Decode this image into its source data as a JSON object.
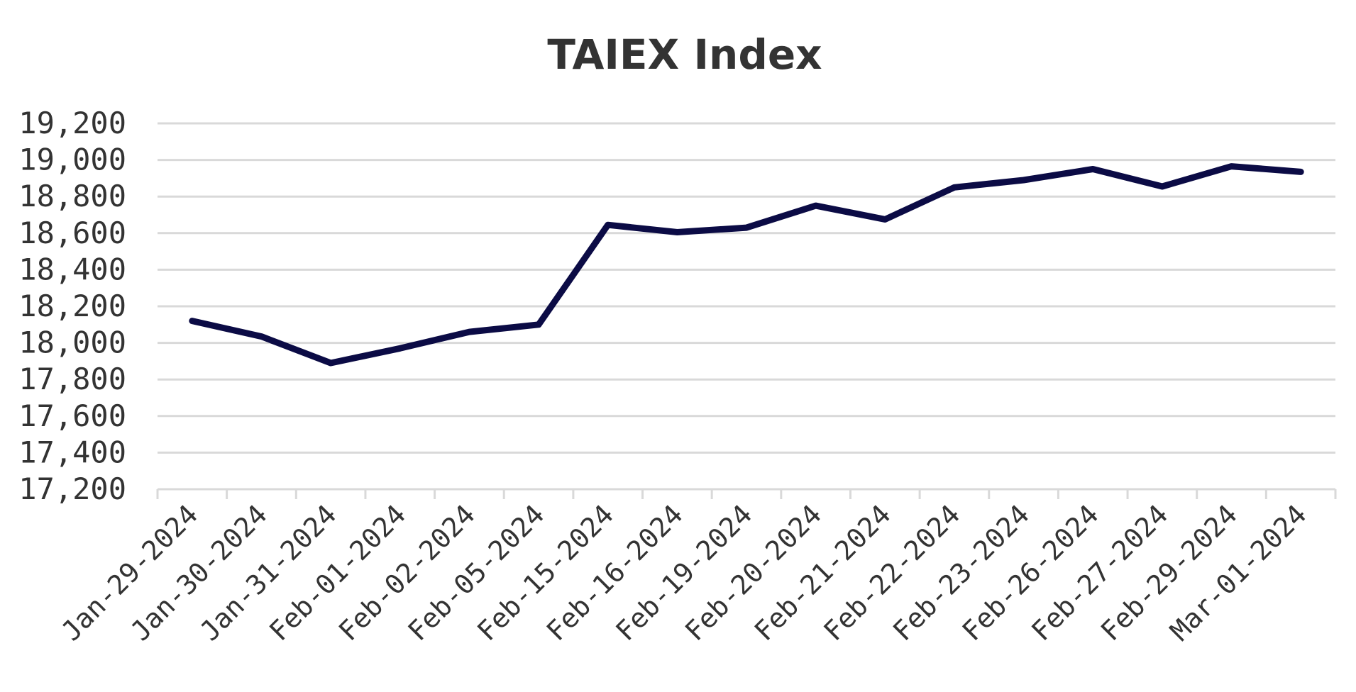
{
  "chart_data": {
    "type": "line",
    "title": "TAIEX Index",
    "xlabel": "",
    "ylabel": "",
    "categories": [
      "Jan-29-2024",
      "Jan-30-2024",
      "Jan-31-2024",
      "Feb-01-2024",
      "Feb-02-2024",
      "Feb-05-2024",
      "Feb-15-2024",
      "Feb-16-2024",
      "Feb-19-2024",
      "Feb-20-2024",
      "Feb-21-2024",
      "Feb-22-2024",
      "Feb-23-2024",
      "Feb-26-2024",
      "Feb-27-2024",
      "Feb-29-2024",
      "Mar-01-2024"
    ],
    "series": [
      {
        "values": [
          18120,
          18035,
          17890,
          17970,
          18060,
          18100,
          18645,
          18605,
          18630,
          18750,
          18675,
          18850,
          18890,
          18950,
          18855,
          18965,
          18935
        ],
        "color": "#0b0b45"
      }
    ],
    "ylim": [
      17200,
      19200
    ],
    "yticks": [
      "17,200",
      "17,400",
      "17,600",
      "17,800",
      "18,000",
      "18,200",
      "18,400",
      "18,600",
      "18,800",
      "19,000",
      "19,200"
    ],
    "ytick_values": [
      17200,
      17400,
      17600,
      17800,
      18000,
      18200,
      18400,
      18600,
      18800,
      19000,
      19200
    ],
    "grid": true,
    "legend": "none"
  }
}
